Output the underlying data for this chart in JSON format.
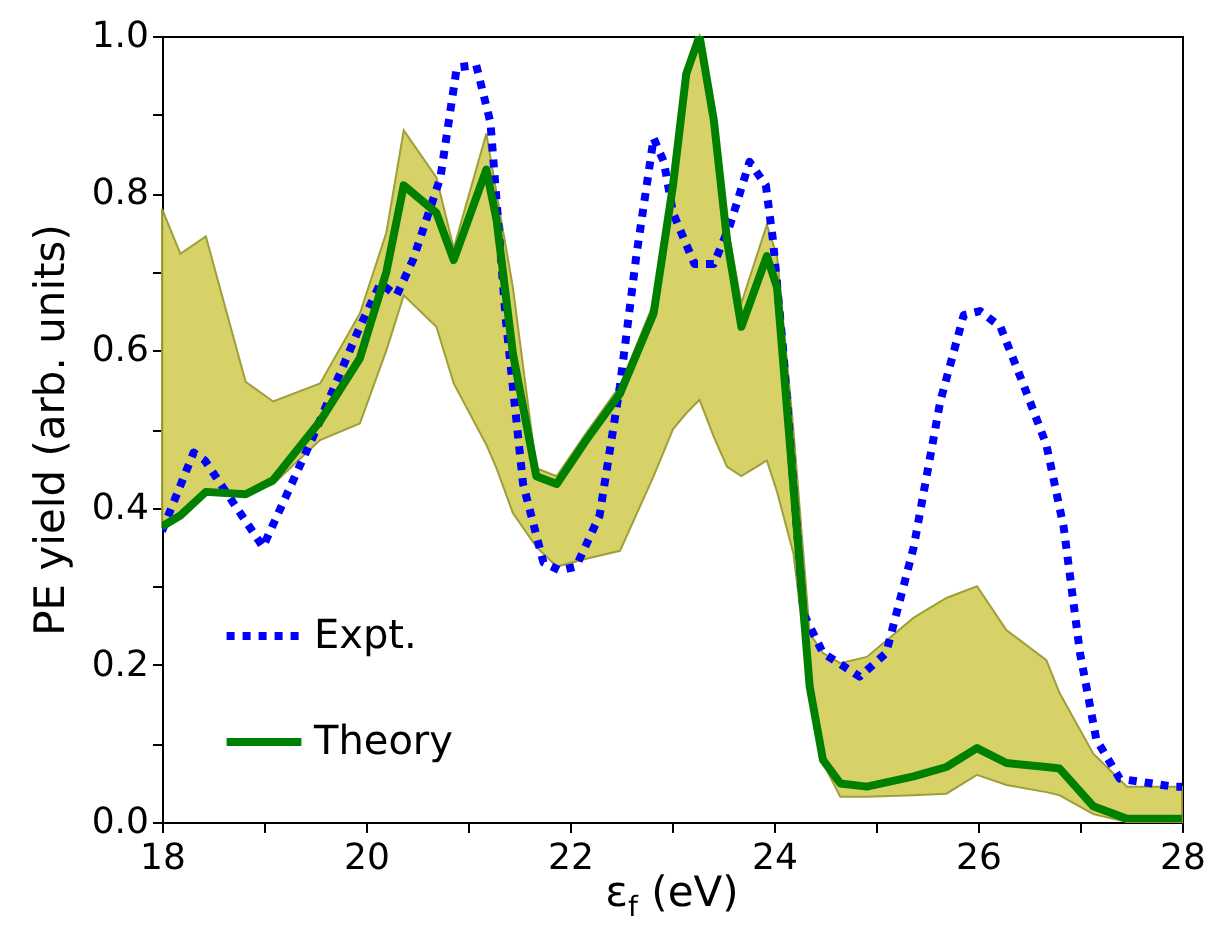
{
  "chart_data": {
    "type": "line",
    "xlabel": "ε$_{f}$ (eV)",
    "ylabel": "PE yield (arb. units)",
    "xlim": [
      18,
      28
    ],
    "xticks": [
      18,
      {
        "value": 19,
        "label": null
      },
      20,
      {
        "value": 21,
        "label": null
      },
      22,
      {
        "value": 23,
        "label": null
      },
      24,
      {
        "value": 25,
        "label": null
      },
      26,
      {
        "value": 27,
        "label": null
      },
      28
    ],
    "ylim": [
      0,
      1
    ],
    "yticks": [
      {
        "value": 0,
        "label": "0.0"
      },
      {
        "value": 0.1,
        "label": null
      },
      0.2,
      {
        "value": 0.3,
        "label": null
      },
      0.4,
      {
        "value": 0.5,
        "label": null
      },
      0.6,
      {
        "value": 0.7,
        "label": null
      },
      0.8,
      {
        "value": 0.9,
        "label": null
      },
      {
        "value": 1,
        "label": "1.0"
      }
    ],
    "grid": false,
    "legend": "bottom left",
    "series": [
      {
        "name": "Expt.",
        "color": "#0000ff",
        "line_style": "dotted",
        "x": [
          18,
          18.31,
          18.42,
          18.99,
          19.48,
          19.94,
          20.14,
          20.3,
          20.46,
          20.73,
          20.89,
          21.08,
          21.22,
          21.37,
          21.54,
          21.74,
          21.9,
          22.06,
          22.29,
          22.49,
          22.65,
          22.82,
          22.92,
          23.01,
          23.22,
          23.41,
          23.57,
          23.76,
          23.92,
          23.99,
          24.09,
          24.19,
          24.29,
          24.48,
          24.84,
          25.1,
          25.37,
          25.63,
          25.86,
          26.02,
          26.22,
          26.45,
          26.67,
          26.84,
          27.0,
          27.16,
          27.39,
          27.92,
          28
        ],
        "values": [
          0.37,
          0.47,
          0.46,
          0.35,
          0.49,
          0.63,
          0.685,
          0.67,
          0.715,
          0.82,
          0.96,
          0.963,
          0.89,
          0.64,
          0.43,
          0.33,
          0.32,
          0.325,
          0.39,
          0.555,
          0.72,
          0.87,
          0.84,
          0.775,
          0.71,
          0.71,
          0.76,
          0.84,
          0.81,
          0.74,
          0.6,
          0.43,
          0.265,
          0.215,
          0.185,
          0.215,
          0.35,
          0.535,
          0.645,
          0.65,
          0.63,
          0.555,
          0.48,
          0.375,
          0.215,
          0.105,
          0.055,
          0.045,
          0.045
        ]
      },
      {
        "name": "Theory",
        "color": "#008000",
        "line_style": "solid",
        "x": [
          18,
          18.18,
          18.43,
          18.82,
          19.09,
          19.55,
          19.94,
          20.2,
          20.37,
          20.69,
          20.86,
          21.18,
          21.28,
          21.44,
          21.67,
          21.87,
          22.16,
          22.49,
          22.82,
          23.01,
          23.14,
          23.27,
          23.41,
          23.54,
          23.68,
          23.93,
          24.03,
          24.19,
          24.35,
          24.48,
          24.65,
          24.91,
          25.37,
          25.69,
          25.99,
          26.28,
          26.67,
          26.8,
          27.13,
          27.46,
          28
        ],
        "values": [
          0.376,
          0.39,
          0.42,
          0.417,
          0.435,
          0.51,
          0.59,
          0.7,
          0.81,
          0.775,
          0.715,
          0.83,
          0.766,
          0.596,
          0.44,
          0.43,
          0.486,
          0.545,
          0.647,
          0.81,
          0.952,
          1.0,
          0.893,
          0.74,
          0.63,
          0.72,
          0.68,
          0.427,
          0.172,
          0.079,
          0.049,
          0.045,
          0.058,
          0.07,
          0.094,
          0.075,
          0.07,
          0.068,
          0.02,
          0.004,
          0.004
        ],
        "lower": [
          0.376,
          0.39,
          0.42,
          0.417,
          0.43,
          0.486,
          0.507,
          0.6,
          0.67,
          0.63,
          0.558,
          0.48,
          0.45,
          0.393,
          0.35,
          0.325,
          0.335,
          0.345,
          0.44,
          0.5,
          0.52,
          0.537,
          0.49,
          0.452,
          0.44,
          0.46,
          0.42,
          0.342,
          0.17,
          0.075,
          0.032,
          0.032,
          0.034,
          0.036,
          0.06,
          0.047,
          0.038,
          0.034,
          0.01,
          0,
          0
        ],
        "upper": [
          0.78,
          0.723,
          0.745,
          0.56,
          0.535,
          0.558,
          0.647,
          0.75,
          0.88,
          0.82,
          0.73,
          0.876,
          0.8,
          0.68,
          0.45,
          0.44,
          0.495,
          0.555,
          0.66,
          0.82,
          0.96,
          1.0,
          0.9,
          0.76,
          0.66,
          0.76,
          0.72,
          0.5,
          0.24,
          0.215,
          0.202,
          0.21,
          0.26,
          0.285,
          0.3,
          0.244,
          0.206,
          0.164,
          0.087,
          0.045,
          0.045
        ]
      }
    ]
  }
}
